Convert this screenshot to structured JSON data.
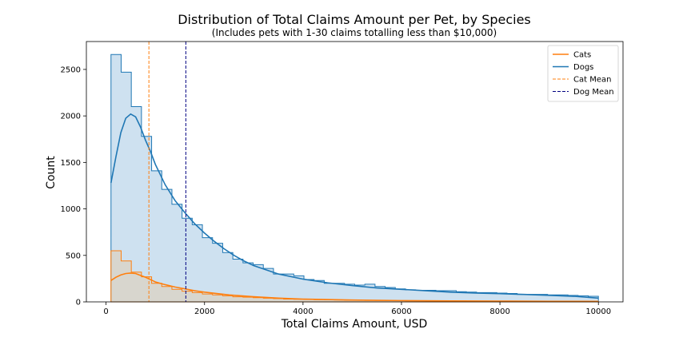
{
  "chart_data": {
    "type": "histogram",
    "title": "Distribution of Total Claims Amount per Pet, by Species",
    "subtitle": "(Includes pets with 1-30 claims totalling less than $10,000)",
    "xlabel": "Total Claims Amount, USD",
    "ylabel": "Count",
    "xlim": [
      -400,
      10500
    ],
    "ylim": [
      0,
      2800
    ],
    "x_ticks": [
      0,
      2000,
      4000,
      6000,
      8000,
      10000
    ],
    "y_ticks": [
      0,
      500,
      1000,
      1500,
      2000,
      2500
    ],
    "grid": false,
    "legend_position": "top-right",
    "bin_start": 100,
    "bin_width": 206.25,
    "series": [
      {
        "name": "Dogs",
        "color": "#1f77b4",
        "fill": "#aecde6",
        "counts": [
          2660,
          2470,
          2100,
          1780,
          1410,
          1210,
          1050,
          900,
          830,
          690,
          630,
          530,
          460,
          420,
          400,
          360,
          300,
          300,
          280,
          240,
          230,
          200,
          200,
          190,
          180,
          190,
          165,
          155,
          140,
          130,
          125,
          125,
          120,
          120,
          110,
          105,
          100,
          100,
          95,
          90,
          80,
          80,
          80,
          75,
          75,
          70,
          65,
          60
        ],
        "kde": [
          [
            100,
            1280
          ],
          [
            200,
            1560
          ],
          [
            300,
            1820
          ],
          [
            400,
            1975
          ],
          [
            500,
            2020
          ],
          [
            600,
            1990
          ],
          [
            700,
            1880
          ],
          [
            800,
            1740
          ],
          [
            900,
            1620
          ],
          [
            1000,
            1480
          ],
          [
            1200,
            1260
          ],
          [
            1400,
            1090
          ],
          [
            1600,
            960
          ],
          [
            1800,
            840
          ],
          [
            2000,
            740
          ],
          [
            2200,
            650
          ],
          [
            2400,
            570
          ],
          [
            2600,
            500
          ],
          [
            2800,
            440
          ],
          [
            3000,
            390
          ],
          [
            3500,
            300
          ],
          [
            4000,
            245
          ],
          [
            4500,
            205
          ],
          [
            5000,
            175
          ],
          [
            5500,
            150
          ],
          [
            6000,
            135
          ],
          [
            6500,
            120
          ],
          [
            7000,
            105
          ],
          [
            7500,
            95
          ],
          [
            8000,
            88
          ],
          [
            8500,
            80
          ],
          [
            9000,
            70
          ],
          [
            9500,
            60
          ],
          [
            10000,
            40
          ]
        ]
      },
      {
        "name": "Cats",
        "color": "#ff7f0e",
        "fill": "#e0cfb8",
        "counts": [
          550,
          440,
          320,
          270,
          200,
          165,
          135,
          115,
          100,
          85,
          75,
          65,
          55,
          50,
          45,
          40,
          35,
          30,
          28,
          26,
          24,
          22,
          20,
          18,
          17,
          16,
          15,
          14,
          13,
          12,
          12,
          11,
          10,
          10,
          10,
          9,
          9,
          9,
          8,
          8,
          8,
          8,
          8,
          7,
          7,
          7,
          7,
          6
        ],
        "kde": [
          [
            100,
            230
          ],
          [
            200,
            265
          ],
          [
            300,
            290
          ],
          [
            400,
            305
          ],
          [
            500,
            310
          ],
          [
            600,
            305
          ],
          [
            700,
            285
          ],
          [
            800,
            265
          ],
          [
            900,
            240
          ],
          [
            1000,
            215
          ],
          [
            1200,
            185
          ],
          [
            1400,
            160
          ],
          [
            1600,
            140
          ],
          [
            1800,
            120
          ],
          [
            2000,
            105
          ],
          [
            2500,
            75
          ],
          [
            3000,
            55
          ],
          [
            3500,
            40
          ],
          [
            4000,
            30
          ],
          [
            5000,
            20
          ],
          [
            6000,
            14
          ],
          [
            7000,
            10
          ],
          [
            8000,
            8
          ],
          [
            9000,
            6
          ],
          [
            10000,
            5
          ]
        ]
      }
    ],
    "mean_lines": [
      {
        "name": "Cat Mean",
        "x": 870,
        "color": "#ff7f0e"
      },
      {
        "name": "Dog Mean",
        "x": 1620,
        "color": "#000080"
      }
    ],
    "legend": [
      {
        "label": "Cats",
        "color": "#ff7f0e",
        "style": "solid"
      },
      {
        "label": "Dogs",
        "color": "#1f77b4",
        "style": "solid"
      },
      {
        "label": "Cat Mean",
        "color": "#ff7f0e",
        "style": "dashed"
      },
      {
        "label": "Dog Mean",
        "color": "#000080",
        "style": "dashed"
      }
    ]
  }
}
